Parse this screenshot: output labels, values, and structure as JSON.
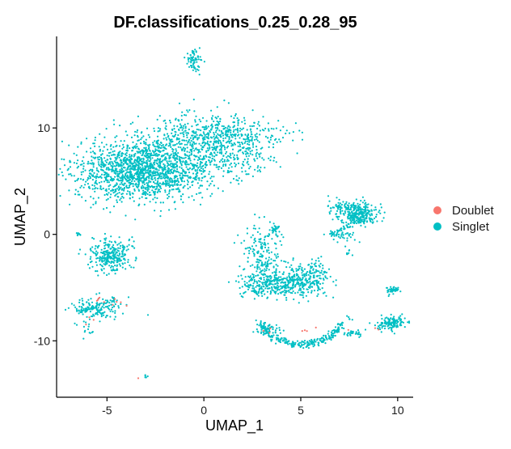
{
  "chart_data": {
    "type": "scatter",
    "title": "DF.classifications_0.25_0.28_95",
    "xlabel": "UMAP_1",
    "ylabel": "UMAP_2",
    "xlim": [
      -7.6,
      10.8
    ],
    "ylim": [
      -15.3,
      18.6
    ],
    "x_ticks": [
      -5,
      0,
      5,
      10
    ],
    "y_ticks": [
      -10,
      0,
      10
    ],
    "grid": false,
    "legend_position": "right",
    "series": [
      {
        "name": "Doublet",
        "color": "#F8766D"
      },
      {
        "name": "Singlet",
        "color": "#00BFC4"
      }
    ],
    "clusters": [
      {
        "series": "Singlet",
        "cx": -3.2,
        "cy": 6.0,
        "sx": 1.7,
        "sy": 1.4,
        "n": 1500
      },
      {
        "series": "Singlet",
        "cx": -0.3,
        "cy": 8.2,
        "sx": 1.6,
        "sy": 1.6,
        "n": 600
      },
      {
        "series": "Singlet",
        "cx": 1.8,
        "cy": 9.4,
        "sx": 1.4,
        "sy": 0.8,
        "n": 200
      },
      {
        "series": "Singlet",
        "cx": 2.6,
        "cy": 7.2,
        "sx": 0.5,
        "sy": 0.8,
        "n": 60
      },
      {
        "series": "Singlet",
        "cx": -0.6,
        "cy": 16.4,
        "sx": 0.2,
        "sy": 0.4,
        "n": 60
      },
      {
        "series": "Singlet",
        "cx": -4.8,
        "cy": -1.9,
        "sx": 0.5,
        "sy": 0.8,
        "n": 300
      },
      {
        "series": "Singlet",
        "cx": -6.5,
        "cy": 0.0,
        "sx": 0.06,
        "sy": 0.1,
        "n": 10
      },
      {
        "series": "Singlet",
        "cx": -5.5,
        "cy": -6.9,
        "sx": 0.7,
        "sy": 0.5,
        "n": 140
      },
      {
        "series": "Singlet",
        "cx": -6.0,
        "cy": -8.8,
        "sx": 0.2,
        "sy": 0.6,
        "n": 15
      },
      {
        "series": "Singlet",
        "cx": -3.0,
        "cy": -13.3,
        "sx": 0.05,
        "sy": 0.1,
        "n": 5
      },
      {
        "series": "Singlet",
        "cx": 3.5,
        "cy": -4.7,
        "sx": 0.8,
        "sy": 0.6,
        "n": 300
      },
      {
        "series": "Singlet",
        "cx": 5.4,
        "cy": -4.2,
        "sx": 0.6,
        "sy": 0.8,
        "n": 250
      },
      {
        "series": "Singlet",
        "cx": 3.0,
        "cy": -2.0,
        "sx": 0.5,
        "sy": 1.4,
        "n": 200
      },
      {
        "series": "Singlet",
        "cx": 3.7,
        "cy": 0.4,
        "sx": 0.15,
        "sy": 0.3,
        "n": 30
      },
      {
        "series": "Singlet",
        "cx": 8.0,
        "cy": 2.0,
        "sx": 0.5,
        "sy": 0.5,
        "n": 280
      },
      {
        "series": "Singlet",
        "cx": 6.8,
        "cy": 2.5,
        "sx": 0.3,
        "sy": 0.4,
        "n": 40
      },
      {
        "series": "Singlet",
        "cx": 7.1,
        "cy": -0.1,
        "sx": 0.4,
        "sy": 0.3,
        "n": 40
      },
      {
        "series": "Singlet",
        "cx": 7.5,
        "cy": -1.6,
        "sx": 0.1,
        "sy": 0.3,
        "n": 8
      },
      {
        "series": "Singlet",
        "cx": 9.8,
        "cy": -5.2,
        "sx": 0.25,
        "sy": 0.12,
        "n": 30
      },
      {
        "series": "Singlet",
        "cx": 9.7,
        "cy": -8.3,
        "sx": 0.35,
        "sy": 0.3,
        "n": 120
      },
      {
        "series": "Singlet",
        "cx": 9.0,
        "cy": -8.7,
        "sx": 0.3,
        "sy": 0.2,
        "n": 10
      },
      {
        "series": "Singlet",
        "cx": 7.7,
        "cy": -9.3,
        "sx": 0.25,
        "sy": 0.15,
        "n": 30
      },
      {
        "series": "Singlet",
        "cx": 7.5,
        "cy": -7.9,
        "sx": 0.1,
        "sy": 0.1,
        "n": 5
      },
      {
        "series": "Singlet",
        "cx": 3.4,
        "cy": -9.0,
        "sx": 0.3,
        "sy": 0.2,
        "n": 40
      },
      {
        "series": "Doublet",
        "cx": -5.0,
        "cy": -6.4,
        "sx": 0.5,
        "sy": 0.3,
        "n": 10
      },
      {
        "series": "Doublet",
        "cx": -6.0,
        "cy": -8.2,
        "sx": 0.2,
        "sy": 0.2,
        "n": 3
      },
      {
        "series": "Doublet",
        "cx": 5.6,
        "cy": -9.0,
        "sx": 0.6,
        "sy": 0.2,
        "n": 5
      },
      {
        "series": "Doublet",
        "cx": 3.0,
        "cy": -9.1,
        "sx": 0.2,
        "sy": 0.2,
        "n": 3
      },
      {
        "series": "Doublet",
        "cx": -3.4,
        "cy": -13.6,
        "sx": 0.05,
        "sy": 0.05,
        "n": 1
      },
      {
        "series": "Doublet",
        "cx": 9.0,
        "cy": -8.9,
        "sx": 0.2,
        "sy": 0.1,
        "n": 2
      }
    ],
    "arcs": [
      {
        "series": "Singlet",
        "cx": 5.0,
        "cy": -7.8,
        "rx": 2.1,
        "ry": 2.5,
        "t0": 3.35,
        "t1": 6.05,
        "n": 250
      }
    ],
    "streaks": [
      {
        "series": "Singlet",
        "x0": -6.5,
        "y0": -7.4,
        "x1": -4.6,
        "y1": -6.1,
        "n": 40
      },
      {
        "series": "Singlet",
        "x0": 6.6,
        "y0": 0.0,
        "x1": 8.3,
        "y1": 1.6,
        "n": 40
      },
      {
        "series": "Singlet",
        "x0": 9.5,
        "y0": -5.6,
        "x1": 10.0,
        "y1": -5.0,
        "n": 12
      },
      {
        "series": "Singlet",
        "x0": -0.6,
        "y0": 15.8,
        "x1": -0.3,
        "y1": 15.2,
        "n": 10
      }
    ]
  }
}
